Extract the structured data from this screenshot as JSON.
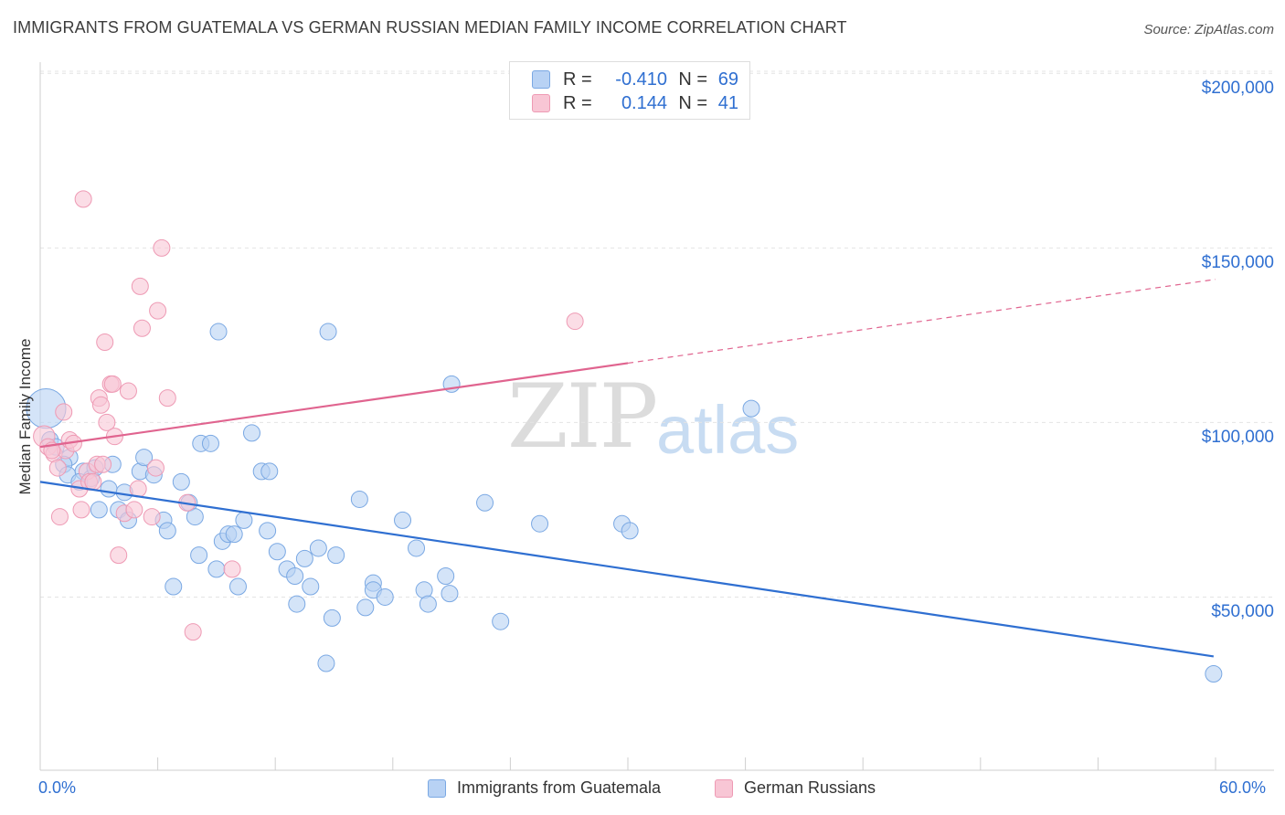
{
  "title": "IMMIGRANTS FROM GUATEMALA VS GERMAN RUSSIAN MEDIAN FAMILY INCOME CORRELATION CHART",
  "source": "Source: ZipAtlas.com",
  "watermark": {
    "left": "ZIP",
    "right": "atlas"
  },
  "legend_top": {
    "rows": [
      {
        "r_label": "R =",
        "r_value": "-0.410",
        "n_label": "N =",
        "n_value": "69",
        "color": "blue"
      },
      {
        "r_label": "R =",
        "r_value": "0.144",
        "n_label": "N =",
        "n_value": "41",
        "color": "pink"
      }
    ]
  },
  "colors": {
    "blue_fill": "#b8d2f4",
    "blue_stroke": "#7aa8e3",
    "blue_line": "#2f6fd1",
    "pink_fill": "#f8c6d5",
    "pink_stroke": "#ee9ab4",
    "pink_line": "#e0648f",
    "axis_label": "#2f6fd1",
    "grid": "#e4e4e4"
  },
  "chart_data": {
    "type": "scatter",
    "title": "IMMIGRANTS FROM GUATEMALA VS GERMAN RUSSIAN MEDIAN FAMILY INCOME CORRELATION CHART",
    "xlabel": "",
    "ylabel": "Median Family Income",
    "xlim": [
      0,
      60
    ],
    "ylim": [
      0,
      210000
    ],
    "x_tick_labels": [
      "0.0%",
      "60.0%"
    ],
    "y_ticks": [
      50000,
      100000,
      150000,
      200000
    ],
    "y_tick_labels": [
      "$50,000",
      "$100,000",
      "$150,000",
      "$200,000"
    ],
    "grid": true,
    "legend_position": "bottom",
    "series": [
      {
        "name": "Immigrants from Guatemala",
        "color": "blue",
        "trend": {
          "x": [
            0,
            59.9
          ],
          "y": [
            83000,
            33000
          ],
          "dashed_from": null
        },
        "points": [
          [
            0.3,
            104000,
            2.4
          ],
          [
            0.5,
            95000,
            1
          ],
          [
            1.5,
            90000,
            1
          ],
          [
            1.2,
            88000,
            1
          ],
          [
            1.4,
            85000,
            1
          ],
          [
            2.2,
            86000,
            1
          ],
          [
            2.6,
            84000,
            1
          ],
          [
            2.0,
            83000,
            1
          ],
          [
            2.8,
            87000,
            1
          ],
          [
            3.7,
            88000,
            1
          ],
          [
            3.5,
            81000,
            1
          ],
          [
            4.3,
            80000,
            1
          ],
          [
            5.1,
            86000,
            1
          ],
          [
            5.3,
            90000,
            1
          ],
          [
            5.8,
            85000,
            1
          ],
          [
            4.0,
            75000,
            1
          ],
          [
            4.5,
            72000,
            1
          ],
          [
            6.3,
            72000,
            1
          ],
          [
            6.5,
            69000,
            1
          ],
          [
            6.8,
            53000,
            1
          ],
          [
            7.2,
            83000,
            1
          ],
          [
            7.6,
            77000,
            1
          ],
          [
            7.9,
            73000,
            1
          ],
          [
            8.1,
            62000,
            1
          ],
          [
            8.2,
            94000,
            1
          ],
          [
            8.7,
            94000,
            1
          ],
          [
            9.0,
            58000,
            1
          ],
          [
            9.1,
            126000,
            1
          ],
          [
            9.3,
            66000,
            1
          ],
          [
            9.6,
            68000,
            1
          ],
          [
            9.9,
            68000,
            1
          ],
          [
            10.1,
            53000,
            1
          ],
          [
            10.4,
            72000,
            1
          ],
          [
            10.8,
            97000,
            1
          ],
          [
            11.3,
            86000,
            1
          ],
          [
            11.6,
            69000,
            1
          ],
          [
            11.7,
            86000,
            1
          ],
          [
            12.1,
            63000,
            1
          ],
          [
            12.6,
            58000,
            1
          ],
          [
            13.0,
            56000,
            1
          ],
          [
            13.1,
            48000,
            1
          ],
          [
            13.5,
            61000,
            1
          ],
          [
            13.8,
            53000,
            1
          ],
          [
            14.2,
            64000,
            1
          ],
          [
            14.7,
            126000,
            1
          ],
          [
            14.9,
            44000,
            1
          ],
          [
            14.6,
            31000,
            1
          ],
          [
            15.1,
            62000,
            1
          ],
          [
            16.3,
            78000,
            1
          ],
          [
            16.6,
            47000,
            1
          ],
          [
            17.0,
            54000,
            1
          ],
          [
            17.0,
            52000,
            1
          ],
          [
            17.6,
            50000,
            1
          ],
          [
            18.5,
            72000,
            1
          ],
          [
            19.2,
            64000,
            1
          ],
          [
            19.6,
            52000,
            1
          ],
          [
            19.8,
            48000,
            1
          ],
          [
            20.7,
            56000,
            1
          ],
          [
            20.9,
            51000,
            1
          ],
          [
            21.0,
            111000,
            1
          ],
          [
            22.7,
            77000,
            1
          ],
          [
            23.5,
            43000,
            1
          ],
          [
            25.5,
            71000,
            1
          ],
          [
            29.7,
            71000,
            1
          ],
          [
            30.1,
            69000,
            1
          ],
          [
            36.3,
            104000,
            1
          ],
          [
            59.9,
            28000,
            1
          ],
          [
            0.8,
            93000,
            1
          ],
          [
            3.0,
            75000,
            1
          ]
        ]
      },
      {
        "name": "German Russians",
        "color": "pink",
        "trend": {
          "x": [
            0,
            60
          ],
          "y": [
            93000,
            141000
          ],
          "dashed_from": 30
        },
        "points": [
          [
            0.2,
            96000,
            1.3
          ],
          [
            0.4,
            93000,
            1
          ],
          [
            0.7,
            91000,
            1
          ],
          [
            0.9,
            87000,
            1
          ],
          [
            1.0,
            73000,
            1
          ],
          [
            1.2,
            103000,
            1
          ],
          [
            1.3,
            92000,
            1
          ],
          [
            1.5,
            95000,
            1
          ],
          [
            1.7,
            94000,
            1
          ],
          [
            2.0,
            81000,
            1
          ],
          [
            2.1,
            75000,
            1
          ],
          [
            2.2,
            164000,
            1
          ],
          [
            2.4,
            86000,
            1
          ],
          [
            2.5,
            83000,
            1
          ],
          [
            2.7,
            83000,
            1
          ],
          [
            2.9,
            88000,
            1
          ],
          [
            3.0,
            107000,
            1
          ],
          [
            3.1,
            105000,
            1
          ],
          [
            3.2,
            88000,
            1
          ],
          [
            3.3,
            123000,
            1
          ],
          [
            3.4,
            100000,
            1
          ],
          [
            3.6,
            111000,
            1
          ],
          [
            3.7,
            111000,
            1
          ],
          [
            3.8,
            96000,
            1
          ],
          [
            4.0,
            62000,
            1
          ],
          [
            4.3,
            74000,
            1
          ],
          [
            4.5,
            109000,
            1
          ],
          [
            4.8,
            75000,
            1
          ],
          [
            5.0,
            81000,
            1
          ],
          [
            5.1,
            139000,
            1
          ],
          [
            5.2,
            127000,
            1
          ],
          [
            5.7,
            73000,
            1
          ],
          [
            5.9,
            87000,
            1
          ],
          [
            6.0,
            132000,
            1
          ],
          [
            6.2,
            150000,
            1
          ],
          [
            6.5,
            107000,
            1
          ],
          [
            7.5,
            77000,
            1
          ],
          [
            7.8,
            40000,
            1
          ],
          [
            9.8,
            58000,
            1
          ],
          [
            27.3,
            129000,
            1
          ],
          [
            0.6,
            92000,
            1
          ]
        ]
      }
    ]
  }
}
